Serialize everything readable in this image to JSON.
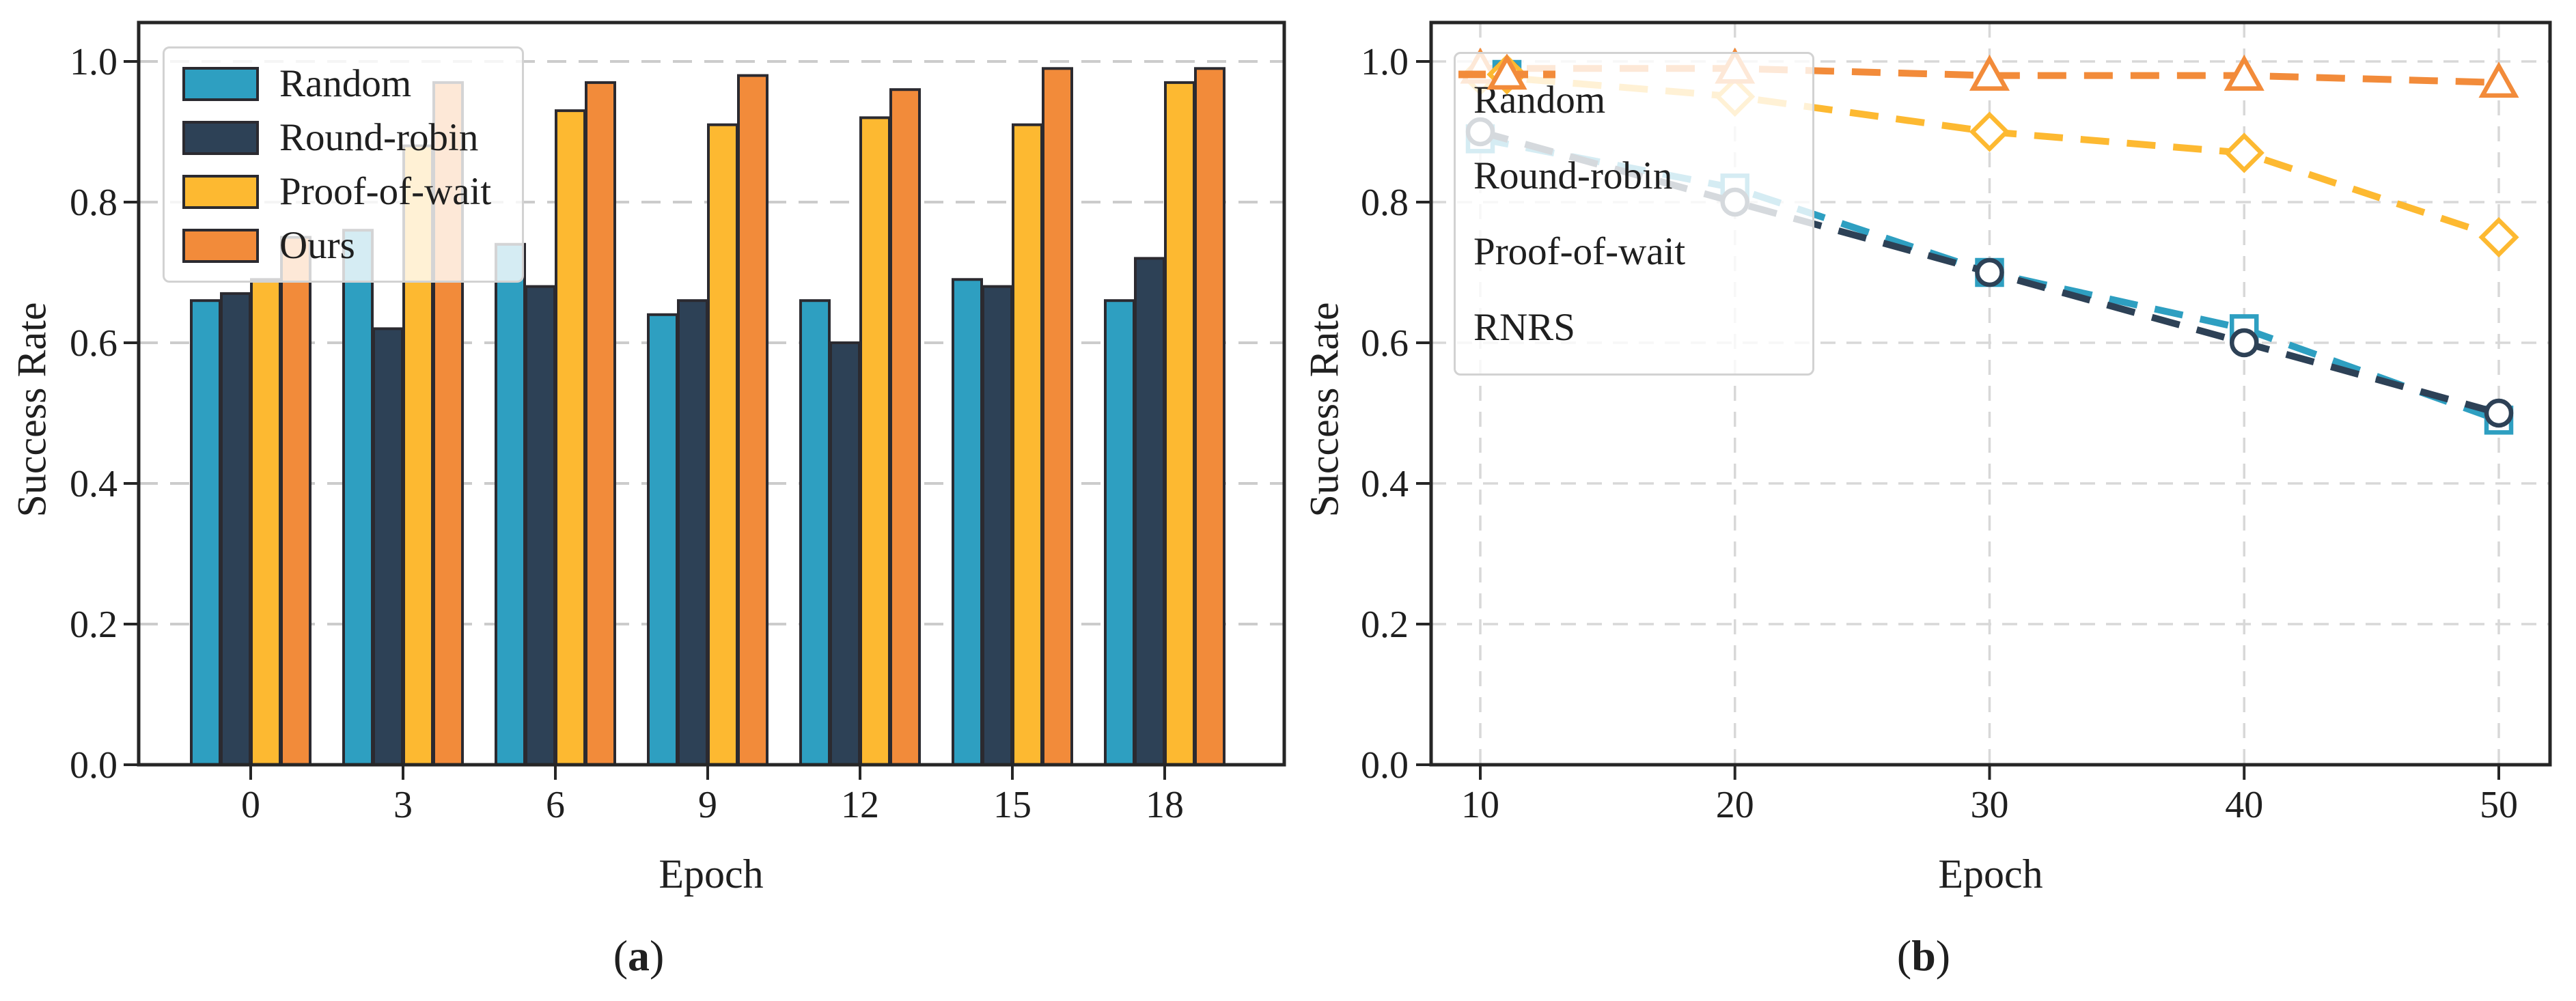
{
  "figure": {
    "background": "#ffffff",
    "text_color": "#1f1f1f",
    "spine_color": "#262626",
    "bar_edge_color": "#2b2a30",
    "legend_border_color": "#d2d2d2"
  },
  "chart_data": [
    {
      "type": "bar",
      "panel": "a",
      "caption": {
        "open": "(",
        "letter": "a",
        "close": ")"
      },
      "xlabel": "Epoch",
      "ylabel": "Success Rate",
      "categories": [
        "0",
        "3",
        "6",
        "9",
        "12",
        "15",
        "18"
      ],
      "ytick_labels": [
        "0.0",
        "0.2",
        "0.4",
        "0.6",
        "0.8",
        "1.0"
      ],
      "ytick_values": [
        0,
        0.2,
        0.4,
        0.6,
        0.8,
        1.0
      ],
      "ylim": [
        0,
        1.055
      ],
      "grid": "horizontal-dashed",
      "gridline_color": "#cccccc",
      "legend_position": "upper-left",
      "series": [
        {
          "name": "Random",
          "color": "#2E9FC1",
          "values": [
            0.66,
            0.76,
            0.74,
            0.64,
            0.66,
            0.69,
            0.66
          ]
        },
        {
          "name": "Round-robin",
          "color": "#2D4156",
          "values": [
            0.67,
            0.62,
            0.68,
            0.66,
            0.6,
            0.68,
            0.72
          ]
        },
        {
          "name": "Proof-of-wait",
          "color": "#FDB931",
          "values": [
            0.69,
            0.88,
            0.93,
            0.91,
            0.92,
            0.91,
            0.97
          ]
        },
        {
          "name": "Ours",
          "color": "#F28B3A",
          "values": [
            0.75,
            0.97,
            0.97,
            0.98,
            0.96,
            0.99,
            0.99
          ]
        }
      ]
    },
    {
      "type": "line",
      "panel": "b",
      "caption": {
        "open": "(",
        "letter": "b",
        "close": ")"
      },
      "xlabel": "Epoch",
      "ylabel": "Success Rate",
      "x": [
        10,
        20,
        30,
        40,
        50
      ],
      "xtick_labels": [
        "10",
        "20",
        "30",
        "40",
        "50"
      ],
      "ytick_labels": [
        "0.0",
        "0.2",
        "0.4",
        "0.6",
        "0.8",
        "1.0"
      ],
      "ytick_values": [
        0,
        0.2,
        0.4,
        0.6,
        0.8,
        1.0
      ],
      "ylim": [
        0,
        1.055
      ],
      "xlim": [
        7.8,
        52
      ],
      "grid": "both-dashed",
      "gridline_color": "#d8d8d8",
      "line_style": "dashed",
      "legend_position": "upper-left",
      "series": [
        {
          "name": "Random",
          "color": "#2E9FC1",
          "marker": "square",
          "values": [
            0.89,
            0.82,
            0.7,
            0.62,
            0.49
          ]
        },
        {
          "name": "Round-robin",
          "color": "#2D4156",
          "marker": "circle",
          "values": [
            0.9,
            0.8,
            0.7,
            0.6,
            0.5
          ]
        },
        {
          "name": "Proof-of-wait",
          "color": "#FDB931",
          "marker": "diamond",
          "values": [
            0.98,
            0.95,
            0.9,
            0.87,
            0.75
          ]
        },
        {
          "name": "RNRS",
          "color": "#F28B3A",
          "marker": "triangle",
          "values": [
            0.99,
            0.99,
            0.98,
            0.98,
            0.97
          ]
        }
      ]
    }
  ]
}
